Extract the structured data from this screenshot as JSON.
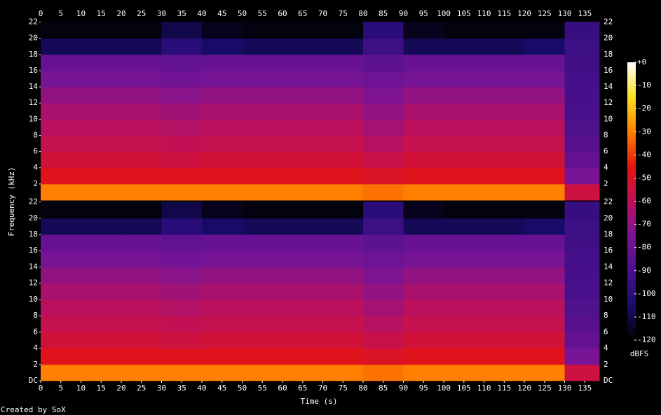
{
  "chart_data": {
    "type": "spectrogram",
    "x_label": "Time (s)",
    "y_label": "Frequency (kHz)",
    "footer": "Created by SoX",
    "colorbar_label": "dBFS",
    "xlim": [
      0,
      138.6
    ],
    "xticks": [
      0,
      5,
      10,
      15,
      20,
      25,
      30,
      35,
      40,
      45,
      50,
      55,
      60,
      65,
      70,
      75,
      80,
      85,
      90,
      95,
      100,
      105,
      110,
      115,
      120,
      125,
      130,
      135
    ],
    "ylim": [
      0,
      22.05
    ],
    "time_bins": [
      0,
      10,
      20,
      30,
      40,
      50,
      60,
      70,
      80,
      90,
      100,
      110,
      120,
      130,
      138.6
    ],
    "freq_bins": [
      0,
      2,
      4,
      6,
      8,
      10,
      12,
      14,
      16,
      18,
      20,
      22.05
    ],
    "clim": [
      -120,
      0
    ],
    "cticks": [
      {
        "value": 0,
        "label": "+0"
      },
      -10,
      -20,
      -30,
      -40,
      -50,
      -60,
      -70,
      -80,
      -90,
      -100,
      -110,
      -120
    ],
    "colormap": [
      "#000000",
      "#1a0c6e",
      "#4a108c",
      "#7a1496",
      "#c0105a",
      "#e8140c",
      "#ff8000",
      "#ffe020",
      "#ffffff"
    ],
    "channels": [
      {
        "yticks": [
          2,
          4,
          6,
          8,
          10,
          12,
          14,
          16,
          18,
          20,
          22
        ],
        "values": [
          [
            -30,
            -30,
            -30,
            -30,
            -30,
            -30,
            -30,
            -30,
            -32,
            -30,
            -30,
            -30,
            -30,
            -55
          ],
          [
            -48,
            -48,
            -48,
            -48,
            -48,
            -48,
            -48,
            -48,
            -50,
            -48,
            -48,
            -48,
            -48,
            -75
          ],
          [
            -54,
            -54,
            -54,
            -55,
            -54,
            -54,
            -54,
            -54,
            -57,
            -54,
            -54,
            -54,
            -54,
            -82
          ],
          [
            -58,
            -58,
            -58,
            -59,
            -58,
            -58,
            -58,
            -58,
            -62,
            -58,
            -58,
            -58,
            -58,
            -86
          ],
          [
            -61,
            -61,
            -61,
            -63,
            -61,
            -61,
            -61,
            -61,
            -66,
            -61,
            -61,
            -61,
            -61,
            -88
          ],
          [
            -65,
            -65,
            -65,
            -67,
            -65,
            -65,
            -65,
            -65,
            -70,
            -65,
            -65,
            -65,
            -65,
            -90
          ],
          [
            -70,
            -70,
            -70,
            -72,
            -70,
            -70,
            -70,
            -70,
            -74,
            -70,
            -70,
            -70,
            -70,
            -91
          ],
          [
            -76,
            -76,
            -76,
            -78,
            -76,
            -76,
            -76,
            -76,
            -79,
            -76,
            -76,
            -76,
            -76,
            -92
          ],
          [
            -81,
            -81,
            -81,
            -83,
            -81,
            -81,
            -81,
            -81,
            -84,
            -81,
            -81,
            -81,
            -81,
            -93
          ],
          [
            -108,
            -108,
            -108,
            -100,
            -106,
            -108,
            -108,
            -108,
            -94,
            -108,
            -108,
            -108,
            -106,
            -94
          ],
          [
            -118,
            -118,
            -118,
            -110,
            -116,
            -118,
            -118,
            -118,
            -100,
            -116,
            -118,
            -118,
            -118,
            -96
          ]
        ]
      },
      {
        "yticks": [
          {
            "value": 0,
            "label": "DC"
          },
          2,
          4,
          6,
          8,
          10,
          12,
          14,
          16,
          18,
          20,
          22
        ],
        "values": [
          [
            -30,
            -30,
            -30,
            -30,
            -30,
            -30,
            -30,
            -30,
            -32,
            -30,
            -30,
            -30,
            -30,
            -55
          ],
          [
            -48,
            -48,
            -48,
            -48,
            -48,
            -48,
            -48,
            -48,
            -50,
            -48,
            -48,
            -48,
            -48,
            -75
          ],
          [
            -54,
            -54,
            -54,
            -55,
            -54,
            -54,
            -54,
            -54,
            -57,
            -54,
            -54,
            -54,
            -54,
            -82
          ],
          [
            -58,
            -58,
            -58,
            -59,
            -58,
            -58,
            -58,
            -58,
            -62,
            -58,
            -58,
            -58,
            -58,
            -86
          ],
          [
            -61,
            -61,
            -61,
            -63,
            -61,
            -61,
            -61,
            -61,
            -66,
            -61,
            -61,
            -61,
            -61,
            -88
          ],
          [
            -65,
            -65,
            -65,
            -67,
            -65,
            -65,
            -65,
            -65,
            -70,
            -65,
            -65,
            -65,
            -65,
            -90
          ],
          [
            -70,
            -70,
            -70,
            -72,
            -70,
            -70,
            -70,
            -70,
            -74,
            -70,
            -70,
            -70,
            -70,
            -91
          ],
          [
            -76,
            -76,
            -76,
            -78,
            -76,
            -76,
            -76,
            -76,
            -79,
            -76,
            -76,
            -76,
            -76,
            -92
          ],
          [
            -81,
            -81,
            -81,
            -83,
            -81,
            -81,
            -81,
            -81,
            -84,
            -81,
            -81,
            -81,
            -81,
            -93
          ],
          [
            -108,
            -108,
            -108,
            -100,
            -106,
            -108,
            -108,
            -108,
            -94,
            -108,
            -108,
            -108,
            -106,
            -94
          ],
          [
            -118,
            -118,
            -118,
            -110,
            -116,
            -118,
            -118,
            -118,
            -100,
            -116,
            -118,
            -118,
            -118,
            -96
          ]
        ]
      }
    ]
  }
}
